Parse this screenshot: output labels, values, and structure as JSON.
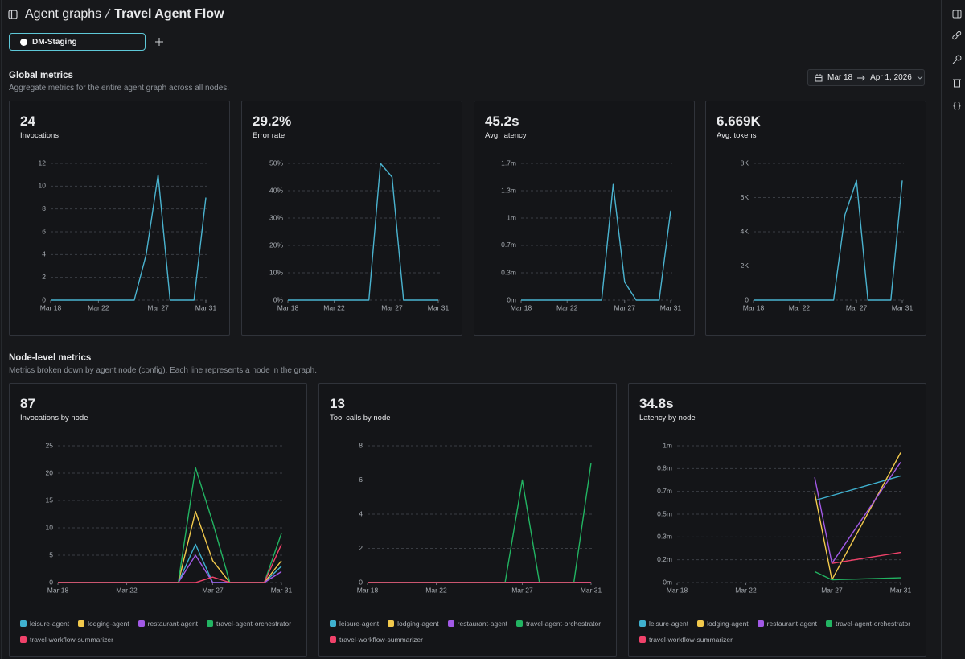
{
  "header": {
    "breadcrumb": "Agent graphs",
    "title": "Travel Agent Flow"
  },
  "tabs": [
    "DM-Staging"
  ],
  "global_metrics": {
    "title": "Global metrics",
    "subtitle": "Aggregate metrics for the entire agent graph across all nodes.",
    "date_range": {
      "start": "Mar 18",
      "end": "Apr 1, 2026"
    },
    "cards": [
      {
        "value": "24",
        "label": "Invocations",
        "chart": {
          "type": "line",
          "categories": [
            "Mar 18",
            null,
            null,
            null,
            "Mar 22",
            null,
            null,
            null,
            null,
            "Mar 27",
            null,
            null,
            null,
            "Mar 31"
          ],
          "ylim": [
            0,
            12
          ],
          "yticks": [
            0,
            2,
            4,
            6,
            8,
            10,
            12
          ],
          "grid": true,
          "series": [
            {
              "color": "#4ab3cf",
              "values": [
                0,
                0,
                0,
                0,
                0,
                0,
                0,
                0,
                4,
                11,
                0,
                0,
                0,
                9
              ]
            }
          ]
        }
      },
      {
        "value": "29.2%",
        "label": "Error rate",
        "chart": {
          "type": "line",
          "categories": [
            "Mar 18",
            null,
            null,
            null,
            "Mar 22",
            null,
            null,
            null,
            null,
            "Mar 27",
            null,
            null,
            null,
            "Mar 31"
          ],
          "ylim": [
            0,
            50
          ],
          "yticks": [
            {
              "value": 0,
              "label": "0%"
            },
            {
              "value": 10,
              "label": "10%"
            },
            {
              "value": 20,
              "label": "20%"
            },
            {
              "value": 30,
              "label": "30%"
            },
            {
              "value": 40,
              "label": "40%"
            },
            {
              "value": 50,
              "label": "50%"
            }
          ],
          "grid": true,
          "series": [
            {
              "color": "#4ab3cf",
              "values": [
                0,
                0,
                0,
                0,
                0,
                0,
                0,
                0,
                50,
                45,
                0,
                0,
                0,
                0
              ]
            }
          ]
        }
      },
      {
        "value": "45.2s",
        "label": "Avg. latency",
        "chart": {
          "type": "line",
          "categories": [
            "Mar 18",
            null,
            null,
            null,
            "Mar 22",
            null,
            null,
            null,
            null,
            "Mar 27",
            null,
            null,
            null,
            "Mar 31"
          ],
          "ylim": [
            0,
            1.667
          ],
          "yticks": [
            {
              "value": 0,
              "label": "0m"
            },
            {
              "value": 0.333,
              "label": "0.3m"
            },
            {
              "value": 0.667,
              "label": "0.7m"
            },
            {
              "value": 1,
              "label": "1m"
            },
            {
              "value": 1.333,
              "label": "1.3m"
            },
            {
              "value": 1.667,
              "label": "1.7m"
            }
          ],
          "grid": true,
          "series": [
            {
              "color": "#4ab3cf",
              "values": [
                0,
                0,
                0,
                0,
                0,
                0,
                0,
                0,
                1.41,
                0.22,
                0,
                0,
                0,
                1.09
              ]
            }
          ]
        }
      },
      {
        "value": "6.669K",
        "label": "Avg. tokens",
        "chart": {
          "type": "line",
          "categories": [
            "Mar 18",
            null,
            null,
            null,
            "Mar 22",
            null,
            null,
            null,
            null,
            "Mar 27",
            null,
            null,
            null,
            "Mar 31"
          ],
          "ylim": [
            0,
            8000
          ],
          "yticks": [
            0,
            {
              "value": 2000,
              "label": "2K"
            },
            {
              "value": 4000,
              "label": "4K"
            },
            {
              "value": 6000,
              "label": "6K"
            },
            {
              "value": 8000,
              "label": "8K"
            }
          ],
          "grid": true,
          "series": [
            {
              "color": "#4ab3cf",
              "values": [
                0,
                0,
                0,
                0,
                0,
                0,
                0,
                0,
                5000,
                7000,
                0,
                0,
                0,
                7000
              ]
            }
          ]
        }
      }
    ]
  },
  "node_metrics": {
    "title": "Node-level metrics",
    "subtitle": "Metrics broken down by agent node (config). Each line represents a node in the graph.",
    "cards": [
      {
        "value": "87",
        "label": "Invocations by node",
        "chart": {
          "type": "line",
          "categories": [
            "Mar 18",
            null,
            null,
            null,
            "Mar 22",
            null,
            null,
            null,
            null,
            "Mar 27",
            null,
            null,
            null,
            "Mar 31"
          ],
          "ylim": [
            0,
            25
          ],
          "yticks": [
            0,
            5,
            10,
            15,
            20,
            25
          ],
          "grid": true,
          "series": [
            {
              "name": "leisure-agent",
              "color": "#3fb1cf",
              "values": [
                0,
                0,
                0,
                0,
                0,
                0,
                0,
                0,
                7,
                0,
                0,
                0,
                0,
                3
              ]
            },
            {
              "name": "lodging-agent",
              "color": "#f2c94c",
              "values": [
                0,
                0,
                0,
                0,
                0,
                0,
                0,
                0,
                13,
                4,
                0,
                0,
                0,
                4
              ]
            },
            {
              "name": "restaurant-agent",
              "color": "#a259e6",
              "values": [
                0,
                0,
                0,
                0,
                0,
                0,
                0,
                0,
                5,
                0,
                0,
                0,
                0,
                2
              ]
            },
            {
              "name": "travel-agent-orchestrator",
              "color": "#22b462",
              "values": [
                0,
                0,
                0,
                0,
                0,
                0,
                0,
                0,
                21,
                11,
                0,
                0,
                0,
                9
              ]
            },
            {
              "name": "travel-workflow-summarizer",
              "color": "#f0426a",
              "values": [
                0,
                0,
                0,
                0,
                0,
                0,
                0,
                0,
                0,
                1,
                0,
                0,
                0,
                7
              ]
            }
          ]
        }
      },
      {
        "value": "13",
        "label": "Tool calls by node",
        "chart": {
          "type": "line",
          "categories": [
            "Mar 18",
            null,
            null,
            null,
            "Mar 22",
            null,
            null,
            null,
            null,
            "Mar 27",
            null,
            null,
            null,
            "Mar 31"
          ],
          "ylim": [
            0,
            8
          ],
          "yticks": [
            0,
            2,
            4,
            6,
            8
          ],
          "grid": true,
          "series": [
            {
              "name": "leisure-agent",
              "color": "#3fb1cf",
              "values": [
                0,
                0,
                0,
                0,
                0,
                0,
                0,
                0,
                0,
                0,
                0,
                0,
                0,
                0
              ]
            },
            {
              "name": "lodging-agent",
              "color": "#f2c94c",
              "values": [
                0,
                0,
                0,
                0,
                0,
                0,
                0,
                0,
                0,
                0,
                0,
                0,
                0,
                0
              ]
            },
            {
              "name": "restaurant-agent",
              "color": "#a259e6",
              "values": [
                0,
                0,
                0,
                0,
                0,
                0,
                0,
                0,
                0,
                0,
                0,
                0,
                0,
                0
              ]
            },
            {
              "name": "travel-agent-orchestrator",
              "color": "#22b462",
              "values": [
                0,
                0,
                0,
                0,
                0,
                0,
                0,
                0,
                0,
                6,
                0,
                0,
                0,
                7
              ]
            },
            {
              "name": "travel-workflow-summarizer",
              "color": "#f0426a",
              "values": [
                0,
                0,
                0,
                0,
                0,
                0,
                0,
                0,
                0,
                0,
                0,
                0,
                0,
                0
              ]
            }
          ]
        }
      },
      {
        "value": "34.8s",
        "label": "Latency by node",
        "chart": {
          "type": "line",
          "categories": [
            "Mar 18",
            null,
            null,
            null,
            "Mar 22",
            null,
            null,
            null,
            null,
            "Mar 27",
            null,
            null,
            null,
            "Mar 31"
          ],
          "ylim": [
            0,
            1
          ],
          "yticks": [
            {
              "value": 0,
              "label": "0m"
            },
            {
              "value": 0.167,
              "label": "0.2m"
            },
            {
              "value": 0.333,
              "label": "0.3m"
            },
            {
              "value": 0.5,
              "label": "0.5m"
            },
            {
              "value": 0.667,
              "label": "0.7m"
            },
            {
              "value": 0.833,
              "label": "0.8m"
            },
            {
              "value": 1,
              "label": "1m"
            }
          ],
          "grid": true,
          "connect_gaps": true,
          "series": [
            {
              "name": "leisure-agent",
              "color": "#3fb1cf",
              "values": [
                null,
                null,
                null,
                null,
                null,
                null,
                null,
                null,
                0.6,
                null,
                null,
                null,
                null,
                0.78
              ]
            },
            {
              "name": "lodging-agent",
              "color": "#f2c94c",
              "values": [
                null,
                null,
                null,
                null,
                null,
                null,
                null,
                null,
                0.655,
                0.02,
                null,
                null,
                null,
                0.95
              ]
            },
            {
              "name": "restaurant-agent",
              "color": "#a259e6",
              "values": [
                null,
                null,
                null,
                null,
                null,
                null,
                null,
                null,
                0.77,
                0.14,
                null,
                null,
                null,
                0.88
              ]
            },
            {
              "name": "travel-agent-orchestrator",
              "color": "#22b462",
              "values": [
                null,
                null,
                null,
                null,
                null,
                null,
                null,
                null,
                0.08,
                0.02,
                null,
                null,
                null,
                0.035
              ]
            },
            {
              "name": "travel-workflow-summarizer",
              "color": "#f0426a",
              "values": [
                null,
                null,
                null,
                null,
                null,
                null,
                null,
                null,
                null,
                0.14,
                null,
                null,
                null,
                0.22
              ]
            }
          ]
        }
      }
    ]
  }
}
